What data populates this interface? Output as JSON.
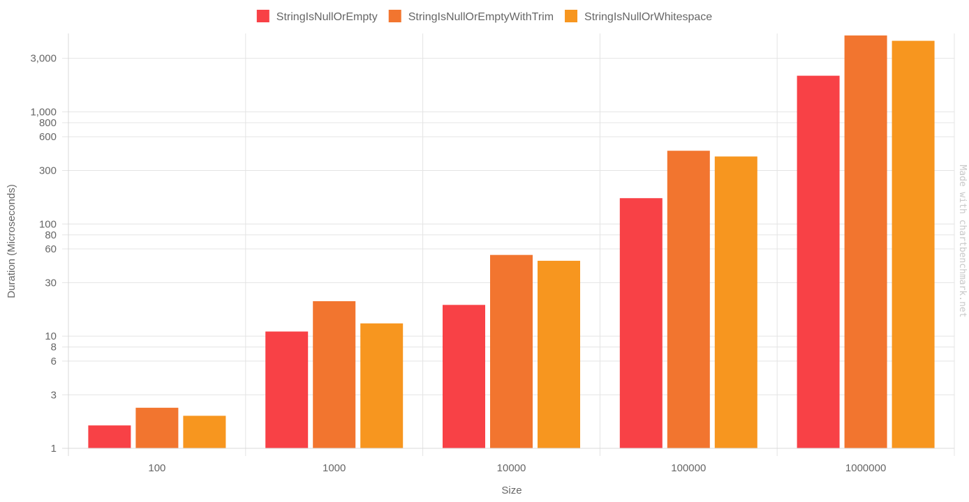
{
  "chart_data": {
    "type": "bar",
    "categories": [
      "100",
      "1000",
      "10000",
      "100000",
      "1000000"
    ],
    "series": [
      {
        "name": "StringIsNullOrEmpty",
        "color": "#f84146",
        "values": [
          1.6,
          11,
          19,
          170,
          2100
        ]
      },
      {
        "name": "StringIsNullOrEmptyWithTrim",
        "color": "#f2752f",
        "values": [
          2.3,
          20.5,
          53,
          450,
          4800
        ]
      },
      {
        "name": "StringIsNullOrWhitespace",
        "color": "#f7961f",
        "values": [
          1.95,
          13,
          47,
          400,
          4300
        ]
      }
    ],
    "xlabel": "Size",
    "ylabel": "Duration (Microseconds)",
    "y_scale": "log",
    "ylim": [
      1,
      5000
    ],
    "y_ticks": [
      {
        "value": 1,
        "label": "1"
      },
      {
        "value": 3,
        "label": "3"
      },
      {
        "value": 6,
        "label": "6"
      },
      {
        "value": 8,
        "label": "8"
      },
      {
        "value": 10,
        "label": "10"
      },
      {
        "value": 30,
        "label": "30"
      },
      {
        "value": 60,
        "label": "60"
      },
      {
        "value": 80,
        "label": "80"
      },
      {
        "value": 100,
        "label": "100"
      },
      {
        "value": 300,
        "label": "300"
      },
      {
        "value": 600,
        "label": "600"
      },
      {
        "value": 800,
        "label": "800"
      },
      {
        "value": 1000,
        "label": "1,000"
      },
      {
        "value": 3000,
        "label": "3,000"
      }
    ],
    "grid": true,
    "legend_position": "top"
  },
  "watermark": "Made with chartbenchmark.net",
  "colors": {
    "grid": "#e4e4e4",
    "text": "#666666"
  }
}
